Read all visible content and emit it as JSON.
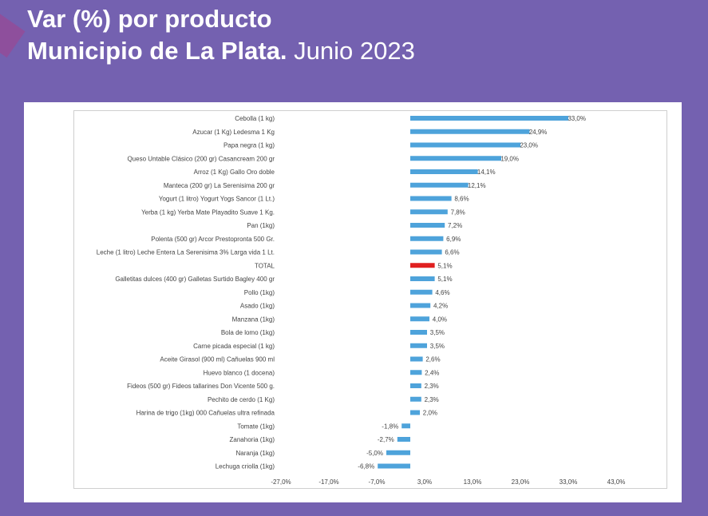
{
  "header": {
    "line1": "Var (%) por producto",
    "line2_bold": "Municipio de La Plata.",
    "line2_regular": "Junio 2023"
  },
  "colors": {
    "background": "#7461b0",
    "bar": "#4ea3db",
    "highlight": "#e02020"
  },
  "chart_data": {
    "type": "bar",
    "orientation": "horizontal",
    "categories": [
      "Cebolla (1 kg)",
      "Azucar (1 Kg) Ledesma 1 Kg",
      "Papa negra (1 kg)",
      "Queso Untable Clásico (200 gr) Casancream 200 gr",
      "Arroz (1 Kg) Gallo Oro doble",
      "Manteca (200 gr) La Serenisima 200 gr",
      "Yogurt (1 litro) Yogurt Yogs Sancor (1 Lt.)",
      "Yerba (1 kg) Yerba Mate Playadito Suave 1 Kg.",
      "Pan (1kg)",
      "Polenta (500 gr) Arcor Prestopronta 500 Gr.",
      "Leche (1 litro) Leche Entera La Serenisima 3% Larga vida 1 Lt.",
      "TOTAL",
      "Galletitas dulces (400 gr) Galletas Surtido Bagley 400 gr",
      "Pollo (1kg)",
      "Asado (1kg)",
      "Manzana (1kg)",
      "Bola de lomo (1kg)",
      "Carne picada especial (1 kg)",
      "Aceite Girasol (900 ml) Cañuelas 900 ml",
      "Huevo blanco (1 docena)",
      "Fideos (500 gr) Fideos tallarines Don Vicente 500 g.",
      "Pechito de cerdo (1 Kg)",
      "Harina de trigo (1kg) 000 Cañuelas ultra refinada",
      "Tomate (1kg)",
      "Zanahoria (1kg)",
      "Naranja (1kg)",
      "Lechuga criolla (1kg)"
    ],
    "values": [
      33.0,
      24.9,
      23.0,
      19.0,
      14.1,
      12.1,
      8.6,
      7.8,
      7.2,
      6.9,
      6.6,
      5.1,
      5.1,
      4.6,
      4.2,
      4.0,
      3.5,
      3.5,
      2.6,
      2.4,
      2.3,
      2.3,
      2.0,
      -1.8,
      -2.7,
      -5.0,
      -6.8
    ],
    "value_labels": [
      "33,0%",
      "24,9%",
      "23,0%",
      "19,0%",
      "14,1%",
      "12,1%",
      "8,6%",
      "7,8%",
      "7,2%",
      "6,9%",
      "6,6%",
      "5,1%",
      "5,1%",
      "4,6%",
      "4,2%",
      "4,0%",
      "3,5%",
      "3,5%",
      "2,6%",
      "2,4%",
      "2,3%",
      "2,3%",
      "2,0%",
      "-1,8%",
      "-2,7%",
      "-5,0%",
      "-6,8%"
    ],
    "highlight_category": "TOTAL",
    "xlim": [
      -27.0,
      43.0
    ],
    "xticks": [
      -27.0,
      -17.0,
      -7.0,
      3.0,
      13.0,
      23.0,
      33.0,
      43.0
    ],
    "xtick_labels": [
      "-27,0%",
      "-17,0%",
      "-7,0%",
      "3,0%",
      "13,0%",
      "23,0%",
      "33,0%",
      "43,0%"
    ],
    "grid": false,
    "legend": "none"
  }
}
